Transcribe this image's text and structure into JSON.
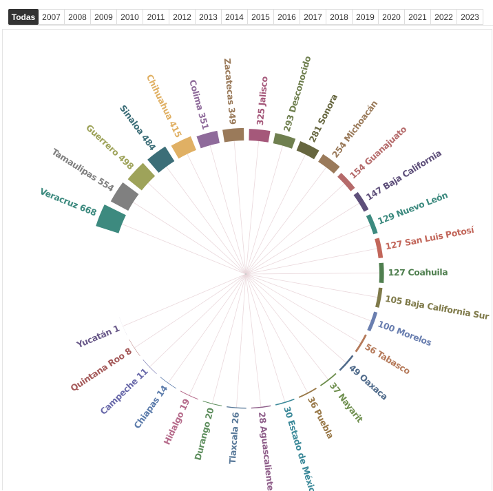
{
  "tabs": [
    "Todas",
    "2007",
    "2008",
    "2009",
    "2010",
    "2011",
    "2012",
    "2013",
    "2014",
    "2015",
    "2016",
    "2017",
    "2018",
    "2019",
    "2020",
    "2021",
    "2022",
    "2023"
  ],
  "chart_data": {
    "type": "radial_bar",
    "categories": [
      "Veracruz",
      "Tamaulipas",
      "Guerrero",
      "Sinaloa",
      "Chihuahua",
      "Colima",
      "Zacatecas",
      "Jalisco",
      "Desconocido",
      "Sonora",
      "Michoacán",
      "Guanajuato",
      "Baja California",
      "Nuevo León",
      "San Luis Potosí",
      "Coahuila",
      "Baja California Sur",
      "Morelos",
      "Tabasco",
      "Oaxaca",
      "Nayarit",
      "Puebla",
      "Estado de México",
      "Aguascalientes",
      "Tlaxcala",
      "Durango",
      "Hidalgo",
      "Chiapas",
      "Campeche",
      "Quintana Roo",
      "Yucatán"
    ],
    "values": [
      668,
      554,
      498,
      484,
      415,
      351,
      349,
      325,
      293,
      281,
      254,
      154,
      147,
      129,
      127,
      127,
      105,
      100,
      56,
      49,
      37,
      36,
      30,
      28,
      26,
      20,
      19,
      14,
      11,
      8,
      1
    ],
    "colors": [
      "#3d8a7f",
      "#808080",
      "#9ea35a",
      "#3c6e78",
      "#e0b064",
      "#8f6b9b",
      "#9a7a5a",
      "#a5587a",
      "#6f7f4f",
      "#66663f",
      "#9a7a5a",
      "#b56a6a",
      "#5e4f7a",
      "#3d8a7f",
      "#c2665a",
      "#4f7f4f",
      "#7f7a4a",
      "#6a7fb0",
      "#b57a5a",
      "#4f6a8a",
      "#6f8f4f",
      "#9a7a4a",
      "#3d8a9a",
      "#8f5f8a",
      "#5a7a9a",
      "#5f8f5f",
      "#b56a8a",
      "#5a7aaa",
      "#6a6aaa",
      "#a55a5a",
      "#6a5a8a"
    ]
  }
}
